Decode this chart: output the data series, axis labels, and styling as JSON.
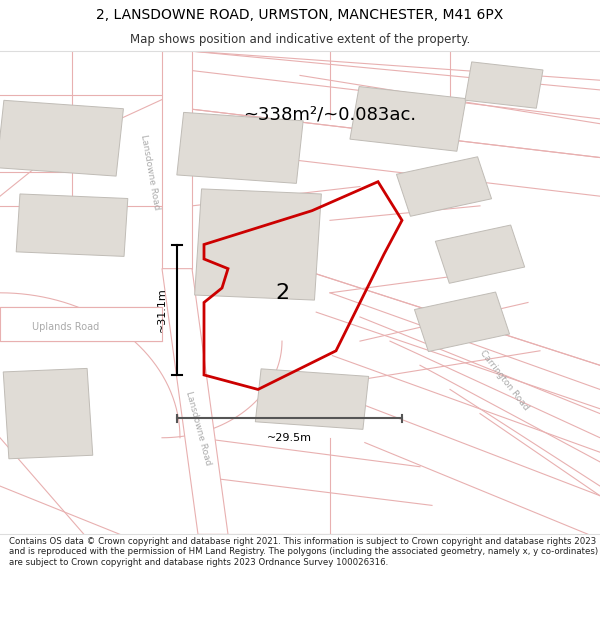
{
  "title_line1": "2, LANSDOWNE ROAD, URMSTON, MANCHESTER, M41 6PX",
  "title_line2": "Map shows position and indicative extent of the property.",
  "area_text": "~338m²/~0.083ac.",
  "property_number": "2",
  "dim_vertical": "~31.1m",
  "dim_horizontal": "~29.5m",
  "footer_text": "Contains OS data © Crown copyright and database right 2021. This information is subject to Crown copyright and database rights 2023 and is reproduced with the permission of HM Land Registry. The polygons (including the associated geometry, namely x, y co-ordinates) are subject to Crown copyright and database rights 2023 Ordnance Survey 100026316.",
  "map_bg": "#f7f5f2",
  "building_fill": "#e0dcd6",
  "building_outline": "#c8c4be",
  "property_fill": "none",
  "property_outline": "#cc0000",
  "road_fill": "#ffffff",
  "road_edge": "#e8b8b8",
  "title_color": "#000000",
  "footer_color": "#222222",
  "dim_color": "#1a1a1a",
  "road_label_color": "#aaaaaa",
  "uplands_label_color": "#aaaaaa",
  "pink_line": "#e8b0b0"
}
